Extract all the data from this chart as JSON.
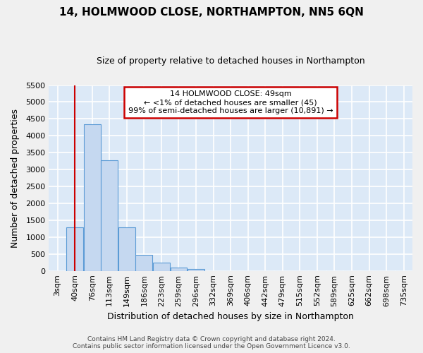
{
  "title": "14, HOLMWOOD CLOSE, NORTHAMPTON, NN5 6QN",
  "subtitle": "Size of property relative to detached houses in Northampton",
  "xlabel": "Distribution of detached houses by size in Northampton",
  "ylabel": "Number of detached properties",
  "bar_color": "#c5d8f0",
  "bar_edge_color": "#5b9bd5",
  "background_color": "#dce9f7",
  "grid_color": "#ffffff",
  "fig_background": "#f0f0f0",
  "categories": [
    "3sqm",
    "40sqm",
    "76sqm",
    "113sqm",
    "149sqm",
    "186sqm",
    "223sqm",
    "259sqm",
    "296sqm",
    "332sqm",
    "369sqm",
    "406sqm",
    "442sqm",
    "479sqm",
    "515sqm",
    "552sqm",
    "589sqm",
    "625sqm",
    "662sqm",
    "698sqm",
    "735sqm"
  ],
  "values": [
    0,
    1280,
    4350,
    3280,
    1280,
    480,
    240,
    100,
    60,
    0,
    0,
    0,
    0,
    0,
    0,
    0,
    0,
    0,
    0,
    0,
    0
  ],
  "property_line_x": 1.0,
  "ylim": [
    0,
    5500
  ],
  "yticks": [
    0,
    500,
    1000,
    1500,
    2000,
    2500,
    3000,
    3500,
    4000,
    4500,
    5000,
    5500
  ],
  "annotation_title": "14 HOLMWOOD CLOSE: 49sqm",
  "annotation_line1": "← <1% of detached houses are smaller (45)",
  "annotation_line2": "99% of semi-detached houses are larger (10,891) →",
  "red_line_color": "#cc0000",
  "annotation_box_facecolor": "#ffffff",
  "annotation_border_color": "#cc0000",
  "footer_line1": "Contains HM Land Registry data © Crown copyright and database right 2024.",
  "footer_line2": "Contains public sector information licensed under the Open Government Licence v3.0.",
  "title_fontsize": 11,
  "subtitle_fontsize": 9,
  "axis_label_fontsize": 9,
  "tick_fontsize": 8,
  "annotation_fontsize": 8,
  "footer_fontsize": 6.5
}
